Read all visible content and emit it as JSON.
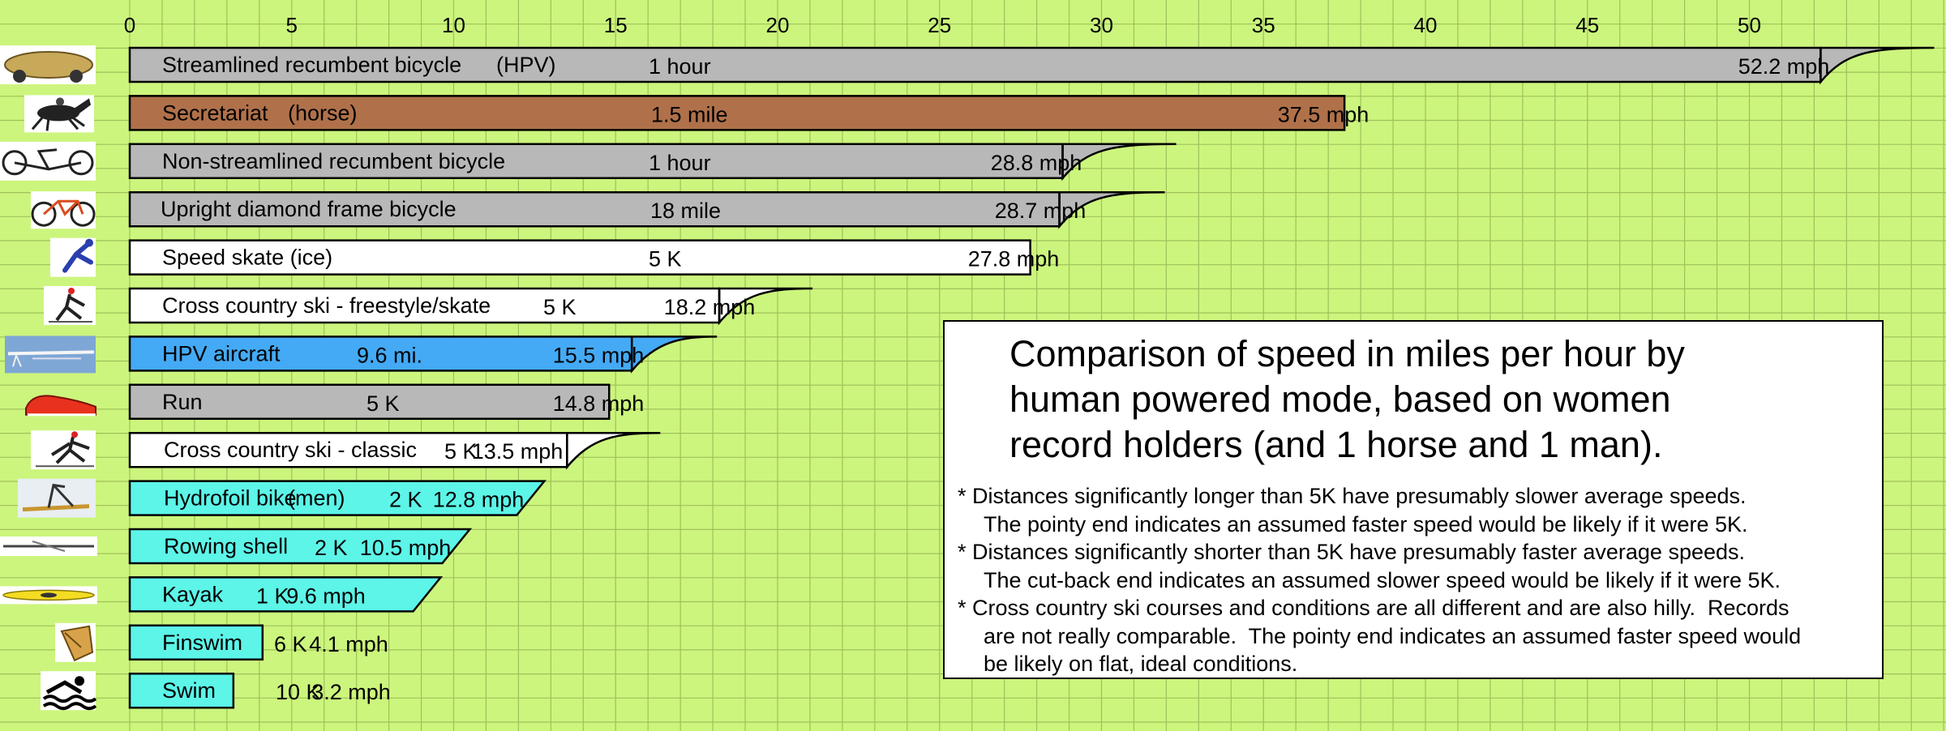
{
  "chart_data": {
    "type": "bar",
    "orientation": "horizontal",
    "xlim": [
      0,
      56
    ],
    "x_ticks": [
      0,
      5,
      10,
      15,
      20,
      25,
      30,
      35,
      40,
      45,
      50
    ],
    "grid": true,
    "series": [
      {
        "name": "Streamlined recumbent bicycle",
        "label_suffix": "(HPV)",
        "distance": "1 hour",
        "value": 52.2,
        "value_label": "52.2 mph",
        "end": "pointy",
        "color": "#b8b8b8",
        "icon": "streamlined-recumbent-icon"
      },
      {
        "name": "Secretariat",
        "label_suffix": "(horse)",
        "distance": "1.5 mile",
        "value": 37.5,
        "value_label": "37.5 mph",
        "end": "flat",
        "color": "#b0714a",
        "icon": "horse-icon"
      },
      {
        "name": "Non-streamlined recumbent bicycle",
        "label_suffix": "",
        "distance": "1 hour",
        "value": 28.8,
        "value_label": "28.8 mph",
        "end": "pointy",
        "color": "#b8b8b8",
        "icon": "recumbent-bicycle-icon"
      },
      {
        "name": "Upright diamond frame bicycle",
        "label_suffix": "",
        "distance": "18 mile",
        "value": 28.7,
        "value_label": "28.7 mph",
        "end": "pointy",
        "color": "#b8b8b8",
        "icon": "bicycle-icon"
      },
      {
        "name": "Speed skate (ice)",
        "label_suffix": "",
        "distance": "5 K",
        "value": 27.8,
        "value_label": "27.8 mph",
        "end": "flat",
        "color": "#ffffff",
        "icon": "speed-skater-icon"
      },
      {
        "name": "Cross country ski - freestyle/skate",
        "label_suffix": "",
        "distance": "5 K",
        "value": 18.2,
        "value_label": "18.2 mph",
        "end": "pointy",
        "color": "#ffffff",
        "icon": "skate-skier-icon"
      },
      {
        "name": "HPV aircraft",
        "label_suffix": "",
        "distance": "9.6 mi.",
        "value": 15.5,
        "value_label": "15.5 mph",
        "end": "pointy",
        "color": "#44aaf5",
        "icon": "aircraft-icon"
      },
      {
        "name": "Run",
        "label_suffix": "",
        "distance": "5 K",
        "value": 14.8,
        "value_label": "14.8 mph",
        "end": "flat",
        "color": "#b8b8b8",
        "icon": "running-shoe-icon"
      },
      {
        "name": "Cross country ski - classic",
        "label_suffix": "",
        "distance": "5 K",
        "value": 13.5,
        "value_label": "13.5 mph",
        "end": "pointy",
        "color": "#ffffff",
        "icon": "classic-skier-icon"
      },
      {
        "name": "Hydrofoil bike",
        "label_suffix": "(men)",
        "distance": "2 K",
        "value": 12.8,
        "value_label": "12.8 mph",
        "end": "cutback",
        "color": "#5cf5e8",
        "icon": "hydrofoil-bike-icon"
      },
      {
        "name": "Rowing shell",
        "label_suffix": "",
        "distance": "2 K",
        "value": 10.5,
        "value_label": "10.5 mph",
        "end": "cutback",
        "color": "#5cf5e8",
        "icon": "rowing-shell-icon"
      },
      {
        "name": "Kayak",
        "label_suffix": "",
        "distance": "1 K",
        "value": 9.6,
        "value_label": "9.6 mph",
        "end": "cutback",
        "color": "#5cf5e8",
        "icon": "kayak-icon"
      },
      {
        "name": "Finswim",
        "label_suffix": "",
        "distance": "6 K",
        "value": 4.1,
        "value_label": "4.1 mph",
        "end": "flat",
        "color": "#5cf5e8",
        "icon": "swim-fin-icon"
      },
      {
        "name": "Swim",
        "label_suffix": "",
        "distance": "10 K",
        "value": 3.2,
        "value_label": "3.2 mph",
        "end": "flat",
        "color": "#5cf5e8",
        "icon": "swimmer-icon"
      }
    ]
  },
  "info": {
    "title_lines": [
      "Comparison of speed in miles per hour by",
      "human powered mode, based on women",
      "record holders (and 1 horse and 1 man)."
    ],
    "notes": [
      {
        "text": "* Distances significantly longer than 5K have presumably slower average speeds.",
        "indent": false
      },
      {
        "text": "The pointy end indicates an assumed faster speed would be likely if it were 5K.",
        "indent": true
      },
      {
        "text": "* Distances significantly shorter than 5K have presumably faster average speeds.",
        "indent": false
      },
      {
        "text": "The cut-back end indicates an assumed slower speed would be likely if it were 5K.",
        "indent": true
      },
      {
        "text": "* Cross country ski courses and conditions are all different and are also hilly.  Records",
        "indent": false
      },
      {
        "text": "are not really comparable.  The pointy end indicates an assumed faster speed would",
        "indent": true
      },
      {
        "text": "be likely on flat, ideal conditions.",
        "indent": true
      }
    ]
  },
  "colors": {
    "background": "#ccf57d",
    "grid": "#9fc15a",
    "bar_outline": "#000000"
  }
}
